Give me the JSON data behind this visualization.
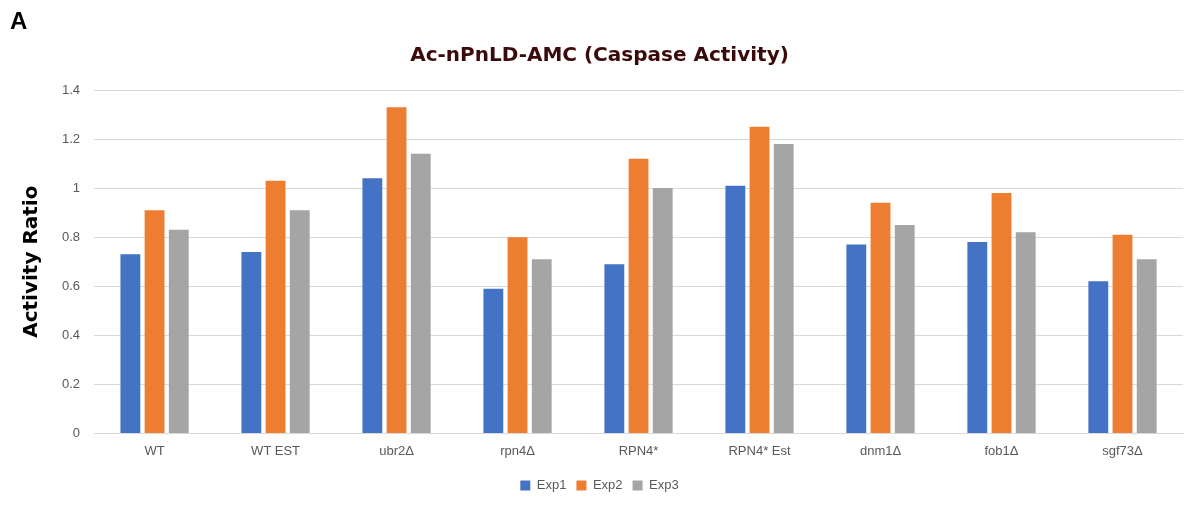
{
  "chart_data": {
    "type": "bar",
    "title": "Ac-nPnLD-AMC (Caspase Activity)",
    "ylabel": "Activity Ratio",
    "annotations": [
      "A"
    ],
    "categories": [
      "WT",
      "WT EST",
      "ubr2Δ",
      "rpn4Δ",
      "RPN4*",
      "RPN4* Est",
      "dnm1Δ",
      "fob1Δ",
      "sgf73Δ"
    ],
    "series": [
      {
        "name": "Exp1",
        "color": "#4472c4",
        "values": [
          0.73,
          0.74,
          1.04,
          0.59,
          0.69,
          1.01,
          0.77,
          0.78,
          0.62
        ]
      },
      {
        "name": "Exp2",
        "color": "#ed7d31",
        "values": [
          0.91,
          1.03,
          1.33,
          0.8,
          1.12,
          1.25,
          0.94,
          0.98,
          0.81
        ]
      },
      {
        "name": "Exp3",
        "color": "#a5a5a5",
        "values": [
          0.83,
          0.91,
          1.14,
          0.71,
          1.0,
          1.18,
          0.85,
          0.82,
          0.71
        ]
      }
    ],
    "ylim": [
      0,
      1.4
    ],
    "yticks": [
      0,
      0.2,
      0.4,
      0.6,
      0.8,
      1,
      1.2,
      1.4
    ],
    "grid": "y",
    "legend": "bottom"
  }
}
